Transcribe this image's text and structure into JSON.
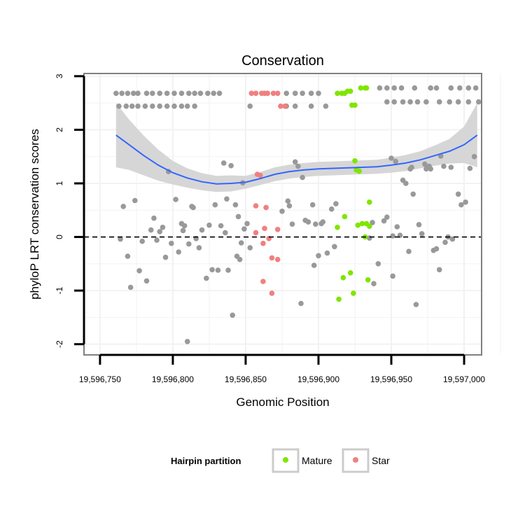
{
  "chart_data": {
    "type": "scatter",
    "title": "Conservation",
    "xlabel": "Genomic Position",
    "ylabel": "phyloP LRT conservation scores",
    "xlim": [
      19596739,
      19597012
    ],
    "ylim": [
      -2.2,
      3.05
    ],
    "xticks": [
      19596750,
      19596800,
      19596850,
      19596900,
      19596950,
      19597000
    ],
    "xtick_labels": [
      "19,596,750",
      "19,596,800",
      "19,596,850",
      "19,596,900",
      "19,596,950",
      "19,597,000"
    ],
    "yticks": [
      -2,
      -1,
      0,
      1,
      2,
      3
    ],
    "ytick_labels": [
      "-2",
      "-1",
      "0",
      "1",
      "2",
      "3"
    ],
    "hline": 0,
    "colors": {
      "other": "#999999",
      "mature": "#7FE600",
      "star": "#F08080",
      "smooth": "#3366FF",
      "band": "#D4D4D4",
      "grid": "#F2F2F2",
      "border": "#808080"
    },
    "legend": {
      "title": "Hairpin partition",
      "entries": [
        {
          "label": "Mature",
          "color": "#7FE600"
        },
        {
          "label": "Star",
          "color": "#F08080"
        }
      ],
      "position": "bottom"
    },
    "smooth": {
      "x": [
        19596761,
        19596770,
        19596780,
        19596790,
        19596800,
        19596810,
        19596820,
        19596830,
        19596840,
        19596850,
        19596860,
        19596870,
        19596880,
        19596890,
        19596900,
        19596910,
        19596920,
        19596930,
        19596940,
        19596950,
        19596960,
        19596970,
        19596980,
        19596990,
        19597000,
        19597009
      ],
      "y": [
        1.9,
        1.72,
        1.52,
        1.34,
        1.2,
        1.1,
        1.03,
        0.99,
        1.0,
        1.02,
        1.09,
        1.17,
        1.22,
        1.25,
        1.27,
        1.28,
        1.29,
        1.3,
        1.31,
        1.34,
        1.38,
        1.44,
        1.52,
        1.6,
        1.72,
        1.9
      ],
      "lower": [
        1.3,
        1.25,
        1.15,
        1.05,
        0.98,
        0.92,
        0.87,
        0.84,
        0.85,
        0.9,
        0.97,
        1.04,
        1.09,
        1.12,
        1.14,
        1.15,
        1.16,
        1.17,
        1.18,
        1.2,
        1.23,
        1.28,
        1.33,
        1.37,
        1.38,
        1.3
      ],
      "upper": [
        2.5,
        2.19,
        1.89,
        1.63,
        1.42,
        1.28,
        1.19,
        1.14,
        1.15,
        1.14,
        1.21,
        1.3,
        1.35,
        1.38,
        1.4,
        1.41,
        1.42,
        1.43,
        1.44,
        1.48,
        1.53,
        1.6,
        1.71,
        1.83,
        2.06,
        2.5
      ]
    },
    "series": [
      {
        "name": "Other",
        "color": "#999999",
        "points": [
          [
            19596761,
            2.68
          ],
          [
            19596765,
            2.68
          ],
          [
            19596769,
            2.68
          ],
          [
            19596773,
            2.68
          ],
          [
            19596776,
            2.68
          ],
          [
            19596782,
            2.68
          ],
          [
            19596786,
            2.68
          ],
          [
            19596791,
            2.68
          ],
          [
            19596796,
            2.68
          ],
          [
            19596801,
            2.68
          ],
          [
            19596806,
            2.68
          ],
          [
            19596811,
            2.68
          ],
          [
            19596815,
            2.68
          ],
          [
            19596819,
            2.68
          ],
          [
            19596824,
            2.68
          ],
          [
            19596828,
            2.68
          ],
          [
            19596832,
            2.68
          ],
          [
            19596878,
            2.68
          ],
          [
            19596884,
            2.68
          ],
          [
            19596889,
            2.68
          ],
          [
            19596895,
            2.68
          ],
          [
            19596900,
            2.68
          ],
          [
            19596942,
            2.78
          ],
          [
            19596947,
            2.78
          ],
          [
            19596952,
            2.78
          ],
          [
            19596957,
            2.78
          ],
          [
            19596966,
            2.78
          ],
          [
            19596977,
            2.78
          ],
          [
            19596981,
            2.78
          ],
          [
            19596991,
            2.78
          ],
          [
            19596997,
            2.78
          ],
          [
            19597003,
            2.78
          ],
          [
            19597008,
            2.78
          ],
          [
            19596763,
            2.44
          ],
          [
            19596768,
            2.44
          ],
          [
            19596772,
            2.44
          ],
          [
            19596776,
            2.44
          ],
          [
            19596781,
            2.44
          ],
          [
            19596786,
            2.44
          ],
          [
            19596791,
            2.44
          ],
          [
            19596796,
            2.44
          ],
          [
            19596801,
            2.44
          ],
          [
            19596806,
            2.44
          ],
          [
            19596810,
            2.44
          ],
          [
            19596815,
            2.44
          ],
          [
            19596853,
            2.44
          ],
          [
            19596878,
            2.44
          ],
          [
            19596884,
            2.44
          ],
          [
            19596895,
            2.44
          ],
          [
            19596905,
            2.44
          ],
          [
            19596947,
            2.52
          ],
          [
            19596952,
            2.52
          ],
          [
            19596958,
            2.52
          ],
          [
            19596963,
            2.52
          ],
          [
            19596968,
            2.52
          ],
          [
            19596974,
            2.52
          ],
          [
            19596983,
            2.52
          ],
          [
            19596990,
            2.52
          ],
          [
            19596996,
            2.52
          ],
          [
            19597003,
            2.52
          ],
          [
            19597010,
            2.52
          ],
          [
            19596764,
            -0.04
          ],
          [
            19596766,
            0.57
          ],
          [
            19596769,
            -0.36
          ],
          [
            19596771,
            -0.94
          ],
          [
            19596774,
            0.68
          ],
          [
            19596777,
            -0.63
          ],
          [
            19596779,
            -0.08
          ],
          [
            19596782,
            -0.82
          ],
          [
            19596785,
            0.13
          ],
          [
            19596787,
            0.35
          ],
          [
            19596789,
            -0.06
          ],
          [
            19596791,
            0.1
          ],
          [
            19596793,
            0.18
          ],
          [
            19596795,
            -0.38
          ],
          [
            19596797,
            1.22
          ],
          [
            19596799,
            -0.12
          ],
          [
            19596802,
            0.7
          ],
          [
            19596804,
            -0.28
          ],
          [
            19596806,
            0.25
          ],
          [
            19596807,
            0.12
          ],
          [
            19596808,
            0.21
          ],
          [
            19596810,
            -1.95
          ],
          [
            19596811,
            -0.13
          ],
          [
            19596813,
            0.57
          ],
          [
            19596814,
            0.55
          ],
          [
            19596816,
            -0.03
          ],
          [
            19596818,
            -0.2
          ],
          [
            19596820,
            0.13
          ],
          [
            19596823,
            -0.77
          ],
          [
            19596825,
            0.22
          ],
          [
            19596827,
            -0.61
          ],
          [
            19596829,
            0.6
          ],
          [
            19596831,
            -0.62
          ],
          [
            19596833,
            0.21
          ],
          [
            19596835,
            1.38
          ],
          [
            19596836,
            0.08
          ],
          [
            19596837,
            0.71
          ],
          [
            19596838,
            -0.62
          ],
          [
            19596840,
            1.33
          ],
          [
            19596841,
            -1.46
          ],
          [
            19596843,
            0.6
          ],
          [
            19596844,
            -0.36
          ],
          [
            19596845,
            0.38
          ],
          [
            19596846,
            -0.42
          ],
          [
            19596847,
            -0.11
          ],
          [
            19596848,
            1.01
          ],
          [
            19596849,
            0.15
          ],
          [
            19596851,
            0.25
          ],
          [
            19596853,
            -0.2
          ],
          [
            19596875,
            0.48
          ],
          [
            19596879,
            0.67
          ],
          [
            19596880,
            0.58
          ],
          [
            19596882,
            0.24
          ],
          [
            19596884,
            1.4
          ],
          [
            19596886,
            1.32
          ],
          [
            19596888,
            -1.24
          ],
          [
            19596889,
            1.11
          ],
          [
            19596891,
            0.31
          ],
          [
            19596893,
            0.28
          ],
          [
            19596896,
            0.6
          ],
          [
            19596897,
            -0.53
          ],
          [
            19596898,
            0.24
          ],
          [
            19596900,
            -0.35
          ],
          [
            19596902,
            0.25
          ],
          [
            19596903,
            0.28
          ],
          [
            19596906,
            -0.3
          ],
          [
            19596909,
            0.52
          ],
          [
            19596911,
            -0.18
          ],
          [
            19596912,
            0.62
          ],
          [
            19596935,
            -0.02
          ],
          [
            19596937,
            0.27
          ],
          [
            19596938,
            -0.87
          ],
          [
            19596941,
            -0.5
          ],
          [
            19596945,
            0.3
          ],
          [
            19596947,
            0.37
          ],
          [
            19596950,
            1.47
          ],
          [
            19596951,
            0.02
          ],
          [
            19596951,
            -0.73
          ],
          [
            19596953,
            1.41
          ],
          [
            19596954,
            0.19
          ],
          [
            19596956,
            0.03
          ],
          [
            19596958,
            1.06
          ],
          [
            19596960,
            1.0
          ],
          [
            19596962,
            -0.27
          ],
          [
            19596963,
            1.27
          ],
          [
            19596964,
            1.3
          ],
          [
            19596965,
            0.8
          ],
          [
            19596967,
            -1.26
          ],
          [
            19596969,
            0.23
          ],
          [
            19596971,
            0.06
          ],
          [
            19596973,
            1.36
          ],
          [
            19596974,
            1.27
          ],
          [
            19596976,
            1.32
          ],
          [
            19596977,
            1.27
          ],
          [
            19596979,
            -0.25
          ],
          [
            19596981,
            -0.22
          ],
          [
            19596983,
            -0.61
          ],
          [
            19596984,
            1.51
          ],
          [
            19596986,
            1.32
          ],
          [
            19596987,
            -0.1
          ],
          [
            19596989,
            0.0
          ],
          [
            19596991,
            1.3
          ],
          [
            19596992,
            -0.04
          ],
          [
            19596996,
            0.8
          ],
          [
            19596998,
            0.6
          ],
          [
            19597001,
            0.65
          ],
          [
            19597004,
            1.28
          ],
          [
            19597007,
            1.5
          ]
        ]
      },
      {
        "name": "Mature",
        "color": "#7FE600",
        "points": [
          [
            19596913,
            2.68
          ],
          [
            19596916,
            2.68
          ],
          [
            19596918,
            2.68
          ],
          [
            19596920,
            2.72
          ],
          [
            19596922,
            2.72
          ],
          [
            19596929,
            2.78
          ],
          [
            19596932,
            2.78
          ],
          [
            19596933,
            2.78
          ],
          [
            19596923,
            2.46
          ],
          [
            19596925,
            2.46
          ],
          [
            19596925,
            1.42
          ],
          [
            19596926,
            1.25
          ],
          [
            19596928,
            1.23
          ],
          [
            19596935,
            0.65
          ],
          [
            19596918,
            0.38
          ],
          [
            19596913,
            0.18
          ],
          [
            19596927,
            0.22
          ],
          [
            19596930,
            0.25
          ],
          [
            19596933,
            0.25
          ],
          [
            19596935,
            0.2
          ],
          [
            19596932,
            0.0
          ],
          [
            19596922,
            -0.67
          ],
          [
            19596917,
            -0.76
          ],
          [
            19596934,
            -0.8
          ],
          [
            19596924,
            -1.05
          ],
          [
            19596914,
            -1.16
          ]
        ]
      },
      {
        "name": "Star",
        "color": "#F08080",
        "points": [
          [
            19596854,
            2.68
          ],
          [
            19596857,
            2.68
          ],
          [
            19596861,
            2.68
          ],
          [
            19596863,
            2.68
          ],
          [
            19596865,
            2.68
          ],
          [
            19596869,
            2.68
          ],
          [
            19596872,
            2.68
          ],
          [
            19596874,
            2.44
          ],
          [
            19596877,
            2.44
          ],
          [
            19596858,
            1.17
          ],
          [
            19596860,
            1.15
          ],
          [
            19596857,
            0.58
          ],
          [
            19596864,
            0.55
          ],
          [
            19596863,
            0.16
          ],
          [
            19596872,
            0.14
          ],
          [
            19596857,
            0.08
          ],
          [
            19596866,
            -0.03
          ],
          [
            19596862,
            -0.12
          ],
          [
            19596868,
            -0.39
          ],
          [
            19596872,
            -0.42
          ],
          [
            19596862,
            -0.83
          ],
          [
            19596868,
            -1.05
          ]
        ]
      }
    ]
  }
}
